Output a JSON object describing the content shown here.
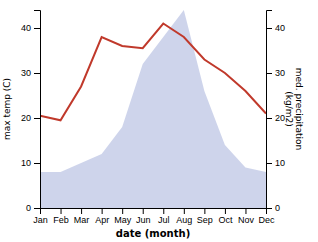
{
  "chart_data": {
    "type": "line",
    "categories": [
      "Jan",
      "Feb",
      "Mar",
      "Apr",
      "May",
      "Jun",
      "Jul",
      "Aug",
      "Sep",
      "Oct",
      "Nov",
      "Dec"
    ],
    "series": [
      {
        "type": "line",
        "color": "#c0392b",
        "values": [
          20.5,
          19.5,
          27,
          38,
          36,
          35.5,
          41,
          38,
          33,
          30,
          26,
          21
        ]
      },
      {
        "type": "area",
        "color": "#c5cce8",
        "axis": "y2",
        "values": [
          8,
          8,
          10,
          12,
          18,
          32,
          38,
          44,
          26,
          14,
          9,
          8
        ]
      }
    ],
    "xlabel": "date (month)",
    "ylabel": "max temp (C)",
    "y2label": "med. precipitation\n(kg/m2)",
    "ylim": [
      0,
      44
    ],
    "yticks": [
      0,
      10,
      20,
      30,
      40
    ],
    "y2lim": [
      0,
      44
    ],
    "y2ticks": [
      0,
      10,
      20,
      30,
      40
    ],
    "grid": false
  }
}
